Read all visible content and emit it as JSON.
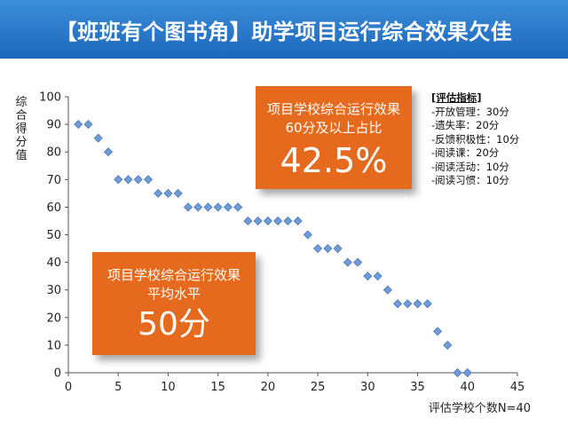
{
  "header": {
    "title": "【班班有个图书角】助学项目运行综合效果欠佳"
  },
  "callouts": {
    "top": {
      "caption": "项目学校综合运行效果60分及以上占比",
      "value": "42.5%"
    },
    "bottom": {
      "caption": "项目学校综合运行效果平均水平",
      "value": "50分"
    }
  },
  "legend": {
    "title": "[评估指标]",
    "items": [
      "-开放管理：30分",
      "-遗失率：20分",
      "-反馈积极性：10分",
      "-阅读课：20分",
      "-阅读活动：10分",
      "-阅读习惯：10分"
    ]
  },
  "colors": {
    "header": "#1f6ec2",
    "callout": "#e66a1e",
    "marker": "#6f9bd6"
  },
  "chart_data": {
    "type": "scatter",
    "xlabel": "评估学校个数N=40",
    "ylabel": "综合得分值",
    "xlim": [
      0,
      45
    ],
    "ylim": [
      0,
      100
    ],
    "xticks": [
      0,
      5,
      10,
      15,
      20,
      25,
      30,
      35,
      40,
      45
    ],
    "yticks": [
      0,
      10,
      20,
      30,
      40,
      50,
      60,
      70,
      80,
      90,
      100
    ],
    "grid": false,
    "x": [
      1,
      2,
      3,
      4,
      5,
      6,
      7,
      8,
      9,
      10,
      11,
      12,
      13,
      14,
      15,
      16,
      17,
      18,
      19,
      20,
      21,
      22,
      23,
      24,
      25,
      26,
      27,
      28,
      29,
      30,
      31,
      32,
      33,
      34,
      35,
      36,
      37,
      38,
      39,
      40
    ],
    "y": [
      90,
      90,
      85,
      80,
      70,
      70,
      70,
      70,
      65,
      65,
      65,
      60,
      60,
      60,
      60,
      60,
      60,
      55,
      55,
      55,
      55,
      55,
      55,
      50,
      45,
      45,
      45,
      40,
      40,
      35,
      35,
      30,
      25,
      25,
      25,
      25,
      15,
      10,
      0,
      0
    ]
  }
}
